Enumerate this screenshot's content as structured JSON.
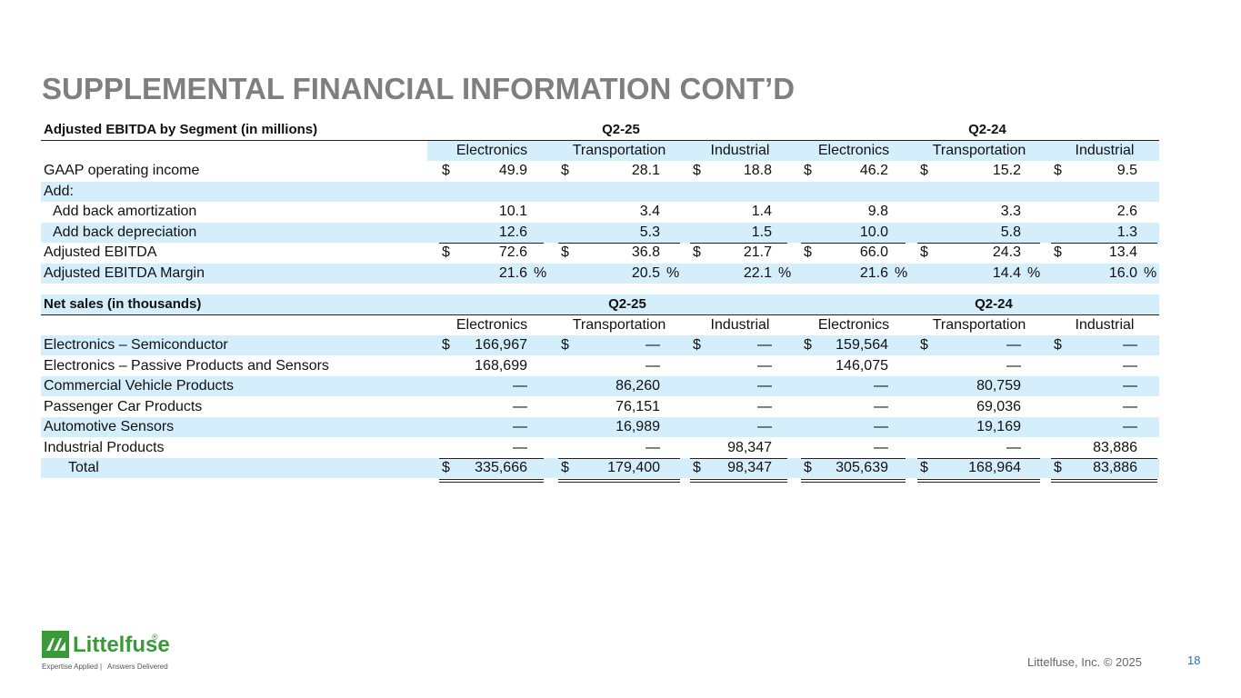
{
  "title": "SUPPLEMENTAL FINANCIAL INFORMATION CONT’D",
  "tables": [
    {
      "caption": "Adjusted EBITDA by Segment (in millions)",
      "periods": [
        "Q2-25",
        "Q2-24"
      ],
      "columns": [
        "Electronics",
        "Transportation",
        "Industrial",
        "Electronics",
        "Transportation",
        "Industrial"
      ],
      "rows": [
        {
          "label": "GAAP operating income",
          "prefix": "$",
          "values": [
            "49.9",
            "28.1",
            "18.8",
            "46.2",
            "15.2",
            "9.5"
          ]
        },
        {
          "label": "Add:"
        },
        {
          "label": "Add back amortization",
          "values": [
            "10.1",
            "3.4",
            "1.4",
            "9.8",
            "3.3",
            "2.6"
          ]
        },
        {
          "label": "Add back depreciation",
          "values": [
            "12.6",
            "5.3",
            "1.5",
            "10.0",
            "5.8",
            "1.3"
          ]
        },
        {
          "label": "Adjusted EBITDA",
          "prefix": "$",
          "values": [
            "72.6",
            "36.8",
            "21.7",
            "66.0",
            "24.3",
            "13.4"
          ]
        },
        {
          "label": "Adjusted EBITDA Margin",
          "values": [
            "21.6",
            "20.5",
            "22.1",
            "21.6",
            "14.4",
            "16.0"
          ],
          "suffix": "%"
        }
      ]
    },
    {
      "caption": "Net sales (in thousands)",
      "periods": [
        "Q2-25",
        "Q2-24"
      ],
      "columns": [
        "Electronics",
        "Transportation",
        "Industrial",
        "Electronics",
        "Transportation",
        "Industrial"
      ],
      "rows": [
        {
          "label": "Electronics – Semiconductor",
          "prefix": "$",
          "values": [
            "166,967",
            "—",
            "—",
            "159,564",
            "—",
            "—"
          ]
        },
        {
          "label": "Electronics – Passive Products and Sensors",
          "values": [
            "168,699",
            "—",
            "—",
            "146,075",
            "—",
            "—"
          ]
        },
        {
          "label": "Commercial Vehicle Products",
          "values": [
            "—",
            "86,260",
            "—",
            "—",
            "80,759",
            "—"
          ]
        },
        {
          "label": "Passenger Car Products",
          "values": [
            "—",
            "76,151",
            "—",
            "—",
            "69,036",
            "—"
          ]
        },
        {
          "label": "Automotive Sensors",
          "values": [
            "—",
            "16,989",
            "—",
            "—",
            "19,169",
            "—"
          ]
        },
        {
          "label": "Industrial Products",
          "values": [
            "—",
            "—",
            "98,347",
            "—",
            "—",
            "83,886"
          ]
        },
        {
          "label": "Total",
          "prefix": "$",
          "values": [
            "335,666",
            "179,400",
            "98,347",
            "305,639",
            "168,964",
            "83,886"
          ]
        }
      ]
    }
  ],
  "logo": {
    "name": "Littelfuse",
    "mark": "®",
    "tagline": [
      "Expertise Applied",
      "Answers Delivered"
    ]
  },
  "footer": {
    "copyright": "Littelfuse, Inc. © 2025",
    "page": "18"
  }
}
